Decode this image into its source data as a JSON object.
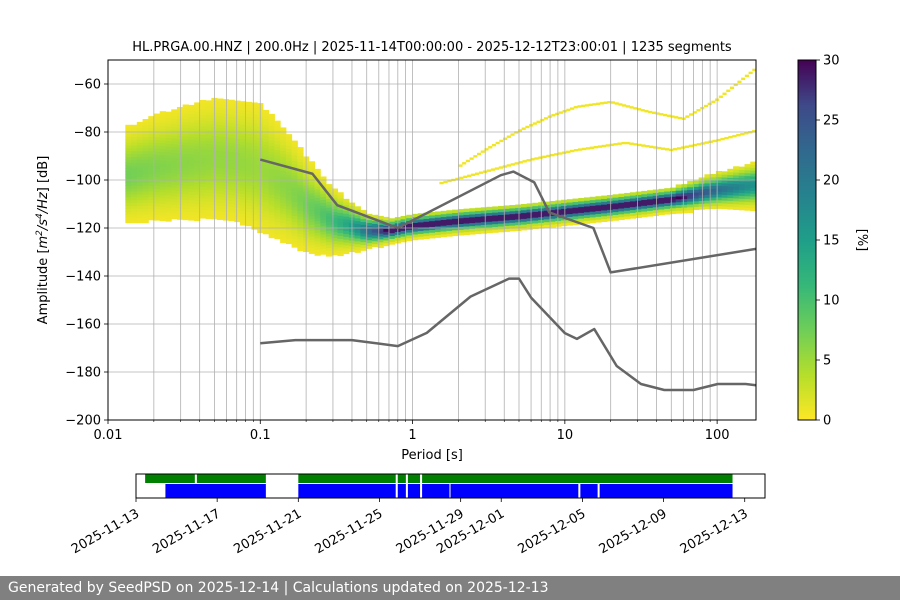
{
  "chart_data": [
    {
      "type": "heatmap",
      "title": "HL.PRGA.00.HNZ | 200.0Hz | 2025-11-14T00:00:00 - 2025-12-12T23:00:01 | 1235 segments",
      "xlabel": "Period [s]",
      "ylabel_parts": [
        "Amplitude [",
        "m",
        "2",
        "/s",
        "4",
        "/Hz",
        "] [dB]"
      ],
      "xscale": "log",
      "xlim": [
        0.01,
        180
      ],
      "ylim": [
        -200,
        -50
      ],
      "xticks": [
        0.01,
        0.1,
        1,
        10,
        100
      ],
      "xtick_labels": [
        "0.01",
        "0.1",
        "1",
        "10",
        "100"
      ],
      "yticks": [
        -60,
        -80,
        -100,
        -120,
        -140,
        -160,
        -180,
        -200
      ],
      "ytick_labels": [
        "−60",
        "−80",
        "−100",
        "−120",
        "−140",
        "−160",
        "−180",
        "−200"
      ],
      "colormap": "viridis_r",
      "colorbar": {
        "label": "[%]",
        "range": [
          0,
          30
        ],
        "ticks": [
          0,
          5,
          10,
          15,
          20,
          25,
          30
        ],
        "tick_labels": [
          "0",
          "5",
          "10",
          "15",
          "20",
          "25",
          "30"
        ]
      },
      "psd_mode": {
        "period": [
          0.013,
          0.02,
          0.03,
          0.05,
          0.07,
          0.1,
          0.15,
          0.2,
          0.3,
          0.5,
          0.7,
          1,
          2,
          5,
          10,
          20,
          50,
          100,
          180
        ],
        "db": [
          -98,
          -95,
          -93,
          -91,
          -92,
          -95,
          -103,
          -110,
          -117,
          -121,
          -121,
          -119,
          -117,
          -115,
          -113,
          -111,
          -108,
          -104,
          -102
        ]
      },
      "psd_spread_db": [
        9,
        10,
        11,
        12,
        12,
        13,
        11,
        9,
        6,
        3,
        2,
        2,
        2,
        2,
        2,
        2,
        2,
        3,
        4
      ],
      "spurious_branches": [
        {
          "name": "upper-hump",
          "period": [
            2,
            3,
            5,
            8,
            12,
            20,
            35,
            60,
            100,
            180
          ],
          "db": [
            -95,
            -88,
            -80,
            -74,
            -70,
            -68,
            -72,
            -75,
            -67,
            -54
          ]
        },
        {
          "name": "mid-hump",
          "period": [
            1.5,
            3,
            6,
            12,
            25,
            50,
            100,
            180
          ],
          "db": [
            -102,
            -97,
            -92,
            -88,
            -85,
            -88,
            -84,
            -80
          ]
        }
      ],
      "noise_models": [
        {
          "name": "NHNM",
          "period": [
            0.1,
            0.22,
            0.32,
            0.8,
            3.8,
            4.6,
            6.3,
            7.9,
            15.4,
            20,
            180
          ],
          "db": [
            -91.5,
            -97.4,
            -110.5,
            -120,
            -98,
            -96.5,
            -101,
            -113.5,
            -120,
            -138.5,
            -128.7
          ]
        },
        {
          "name": "NLNM",
          "period": [
            0.1,
            0.17,
            0.4,
            0.8,
            1.24,
            2.4,
            4.3,
            5,
            6,
            10,
            12,
            15.6,
            21.9,
            31.6,
            45,
            70,
            101,
            154,
            180
          ],
          "db": [
            -168,
            -166.7,
            -166.7,
            -169.2,
            -163.7,
            -148.6,
            -141.1,
            -141.1,
            -149,
            -163.8,
            -166.2,
            -162.1,
            -177.5,
            -185,
            -187.5,
            -187.5,
            -185,
            -185,
            -185.5
          ]
        }
      ]
    },
    {
      "type": "timeline",
      "x_range": [
        "2025-11-13",
        "2025-12-14"
      ],
      "tick_labels": [
        "2025-11-13",
        "2025-11-17",
        "2025-11-21",
        "2025-11-25",
        "2025-11-29",
        "2025-12-01",
        "2025-12-05",
        "2025-12-09",
        "2025-12-13"
      ],
      "tick_days": [
        0,
        4,
        8,
        12,
        16,
        18,
        22,
        26,
        30
      ],
      "bars": [
        {
          "name": "data",
          "color": "#008000",
          "segments": [
            [
              0.45,
              2.9
            ],
            [
              3.0,
              6.4
            ],
            [
              8.0,
              12.8
            ],
            [
              12.9,
              13.3
            ],
            [
              13.4,
              14.0
            ],
            [
              14.1,
              29.4
            ]
          ]
        },
        {
          "name": "psd",
          "color": "#0000ff",
          "segments": [
            [
              1.45,
              6.4
            ],
            [
              8.0,
              12.8
            ],
            [
              12.9,
              13.3
            ],
            [
              13.4,
              14.0
            ],
            [
              14.1,
              15.45
            ],
            [
              15.5,
              21.8
            ],
            [
              21.9,
              22.75
            ],
            [
              22.85,
              29.4
            ]
          ]
        }
      ]
    }
  ],
  "footer": {
    "text": "Generated by SeedPSD on 2025-12-14 | Calculations updated on 2025-12-13"
  },
  "colors": {
    "footer_bg": "#808080",
    "model_line": "#666666",
    "grid": "#b0b0b0"
  }
}
